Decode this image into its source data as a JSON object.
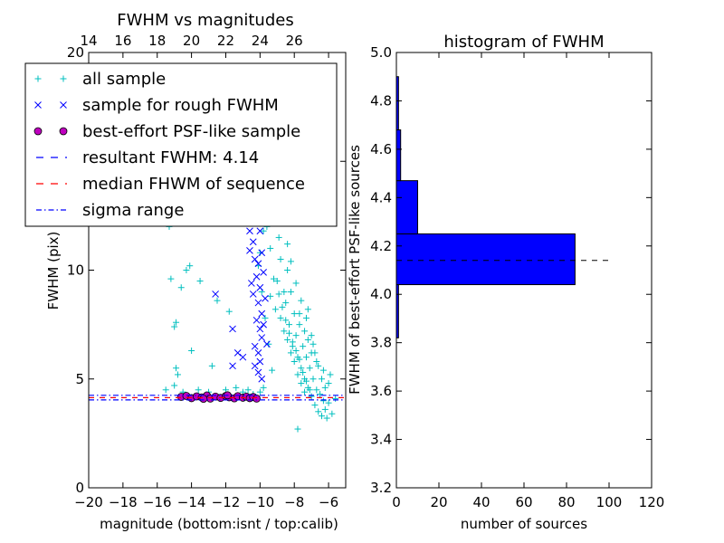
{
  "chart_data": [
    {
      "type": "scatter",
      "title": "FWHM vs magnitudes",
      "xlabel": "magnitude (bottom:isnt / top:calib)",
      "ylabel": "FWHM (pix)",
      "xlim": [
        -20,
        -5
      ],
      "ylim": [
        0,
        20
      ],
      "x_ticks": [
        -20,
        -18,
        -16,
        -14,
        -12,
        -10,
        -8,
        -6
      ],
      "x_tick_labels": [
        "−20",
        "−18",
        "−16",
        "−14",
        "−12",
        "−10",
        "−8",
        "−6"
      ],
      "y_ticks": [
        0,
        5,
        10,
        15,
        20
      ],
      "y_tick_labels": [
        "0",
        "5",
        "10",
        "15",
        "20"
      ],
      "top_axis": {
        "ticks": [
          14,
          16,
          18,
          20,
          22,
          24,
          26
        ],
        "labels": [
          "14",
          "16",
          "18",
          "20",
          "22",
          "24",
          "26"
        ],
        "offset": 34
      },
      "legend": {
        "position": "top-left",
        "entries": [
          {
            "label": "all sample",
            "marker": "plus",
            "color": "#00bfbf"
          },
          {
            "label": "sample for rough FWHM",
            "marker": "x",
            "color": "#0000ff"
          },
          {
            "label": "best-effort PSF-like sample",
            "marker": "circle",
            "color": "#bf00bf"
          },
          {
            "label": "resultant FWHM: 4.14",
            "marker": "dashed",
            "color": "#0000ff"
          },
          {
            "label": "median FHWM of sequence",
            "marker": "dashed",
            "color": "#ff0000"
          },
          {
            "label": "sigma range",
            "marker": "dashdot",
            "color": "#0000ff"
          }
        ]
      },
      "series": [
        {
          "name": "all sample",
          "marker": "plus",
          "color": "#00bfbf",
          "points": [
            [
              -15.3,
              12.0
            ],
            [
              -15.2,
              9.6
            ],
            [
              -15.0,
              7.4
            ],
            [
              -14.9,
              7.6
            ],
            [
              -14.6,
              9.2
            ],
            [
              -14.3,
              10.0
            ],
            [
              -14.1,
              10.2
            ],
            [
              -14.9,
              5.5
            ],
            [
              -14.8,
              5.2
            ],
            [
              -14.0,
              6.3
            ],
            [
              -15.0,
              4.7
            ],
            [
              -13.5,
              9.5
            ],
            [
              -12.5,
              8.6
            ],
            [
              -12.8,
              5.6
            ],
            [
              -11.8,
              8.1
            ],
            [
              -11.3,
              15.9
            ],
            [
              -10.8,
              15.0
            ],
            [
              -10.6,
              13.8
            ],
            [
              -10.2,
              14.5
            ],
            [
              -10.0,
              10.8
            ],
            [
              -9.7,
              13.5
            ],
            [
              -9.6,
              12.0
            ],
            [
              -9.4,
              11.0
            ],
            [
              -9.3,
              14.0
            ],
            [
              -9.1,
              12.5
            ],
            [
              -9.0,
              9.5
            ],
            [
              -8.9,
              11.5
            ],
            [
              -8.8,
              10.5
            ],
            [
              -8.7,
              13.0
            ],
            [
              -8.6,
              9.0
            ],
            [
              -8.5,
              8.5
            ],
            [
              -8.4,
              10.0
            ],
            [
              -8.3,
              7.5
            ],
            [
              -8.2,
              9.0
            ],
            [
              -8.1,
              6.5
            ],
            [
              -8.0,
              8.0
            ],
            [
              -7.9,
              7.0
            ],
            [
              -7.8,
              6.0
            ],
            [
              -7.7,
              7.5
            ],
            [
              -7.6,
              5.5
            ],
            [
              -7.5,
              6.5
            ],
            [
              -7.4,
              5.0
            ],
            [
              -7.3,
              6.0
            ],
            [
              -7.2,
              4.6
            ],
            [
              -7.1,
              5.5
            ],
            [
              -7.0,
              4.2
            ],
            [
              -6.9,
              5.0
            ],
            [
              -6.8,
              3.8
            ],
            [
              -6.7,
              4.5
            ],
            [
              -6.6,
              3.5
            ],
            [
              -6.5,
              4.3
            ],
            [
              -6.4,
              3.3
            ],
            [
              -6.3,
              4.0
            ],
            [
              -6.2,
              3.6
            ],
            [
              -6.1,
              3.2
            ],
            [
              -6.0,
              3.9
            ],
            [
              -5.8,
              3.4
            ],
            [
              -5.6,
              4.1
            ],
            [
              -7.8,
              2.7
            ],
            [
              -9.1,
              8.2
            ],
            [
              -8.8,
              7.8
            ],
            [
              -8.6,
              7.2
            ],
            [
              -8.4,
              6.8
            ],
            [
              -8.2,
              6.2
            ],
            [
              -8.0,
              5.8
            ],
            [
              -7.8,
              5.2
            ],
            [
              -7.6,
              4.8
            ],
            [
              -7.4,
              4.4
            ],
            [
              -9.4,
              8.8
            ],
            [
              -9.2,
              9.6
            ],
            [
              -8.9,
              8.9
            ],
            [
              -8.7,
              8.3
            ],
            [
              -8.5,
              7.7
            ],
            [
              -8.3,
              7.1
            ],
            [
              -8.1,
              6.7
            ],
            [
              -7.9,
              6.3
            ],
            [
              -7.7,
              5.9
            ],
            [
              -7.5,
              5.3
            ],
            [
              -7.3,
              4.9
            ],
            [
              -7.1,
              4.5
            ],
            [
              -9.8,
              11.8
            ],
            [
              -9.5,
              12.8
            ],
            [
              -9.2,
              13.6
            ],
            [
              -8.9,
              14.8
            ],
            [
              -8.6,
              12.2
            ],
            [
              -8.4,
              11.2
            ],
            [
              -8.2,
              10.4
            ],
            [
              -7.9,
              9.4
            ],
            [
              -7.6,
              8.6
            ],
            [
              -7.3,
              7.8
            ],
            [
              -7.0,
              7.0
            ],
            [
              -6.8,
              6.2
            ],
            [
              -6.6,
              5.6
            ],
            [
              -6.4,
              5.0
            ],
            [
              -6.2,
              4.6
            ],
            [
              -7.6,
              19.2
            ],
            [
              -8.6,
              16.5
            ],
            [
              -9.0,
              16.0
            ],
            [
              -7.2,
              8.2
            ],
            [
              -6.9,
              6.6
            ],
            [
              -10.3,
              12.6
            ],
            [
              -10.1,
              10.2
            ],
            [
              -9.9,
              9.0
            ],
            [
              -9.7,
              7.8
            ],
            [
              -9.5,
              6.6
            ],
            [
              -9.3,
              5.4
            ],
            [
              -9.8,
              4.6
            ],
            [
              -10.0,
              4.4
            ],
            [
              -10.4,
              4.3
            ],
            [
              -10.7,
              4.5
            ],
            [
              -11.0,
              4.4
            ],
            [
              -11.4,
              4.6
            ],
            [
              -12.0,
              4.5
            ],
            [
              -13.0,
              4.4
            ],
            [
              -13.6,
              4.5
            ],
            [
              -14.5,
              4.4
            ],
            [
              -15.5,
              4.5
            ],
            [
              -6.0,
              4.8
            ],
            [
              -5.9,
              5.2
            ],
            [
              -6.3,
              5.4
            ],
            [
              -6.7,
              5.8
            ],
            [
              -7.0,
              6.2
            ],
            [
              -7.2,
              6.8
            ],
            [
              -7.4,
              7.2
            ],
            [
              -7.7,
              8.0
            ]
          ]
        },
        {
          "name": "sample for rough FWHM",
          "marker": "x",
          "color": "#0000ff",
          "points": [
            [
              -11.3,
              13.3
            ],
            [
              -10.7,
              13.0
            ],
            [
              -10.5,
              12.6
            ],
            [
              -10.6,
              11.8
            ],
            [
              -10.4,
              11.3
            ],
            [
              -10.6,
              10.9
            ],
            [
              -10.3,
              10.5
            ],
            [
              -10.1,
              10.3
            ],
            [
              -10.2,
              9.7
            ],
            [
              -10.0,
              9.2
            ],
            [
              -10.4,
              8.9
            ],
            [
              -10.1,
              8.5
            ],
            [
              -9.9,
              8.0
            ],
            [
              -10.2,
              7.7
            ],
            [
              -10.0,
              7.3
            ],
            [
              -9.9,
              6.9
            ],
            [
              -10.3,
              6.5
            ],
            [
              -10.1,
              6.2
            ],
            [
              -10.0,
              5.8
            ],
            [
              -10.3,
              5.6
            ],
            [
              -10.1,
              5.3
            ],
            [
              -9.9,
              5.0
            ],
            [
              -11.6,
              7.3
            ],
            [
              -11.3,
              6.2
            ],
            [
              -11.0,
              6.0
            ],
            [
              -11.6,
              5.6
            ],
            [
              -12.6,
              8.9
            ],
            [
              -9.8,
              9.9
            ],
            [
              -9.7,
              8.7
            ],
            [
              -9.8,
              7.5
            ],
            [
              -9.6,
              6.6
            ],
            [
              -10.0,
              11.8
            ],
            [
              -10.2,
              12.3
            ],
            [
              -10.5,
              9.4
            ],
            [
              -9.9,
              10.8
            ]
          ]
        },
        {
          "name": "best-effort PSF-like sample",
          "marker": "circle",
          "color": "#bf00bf",
          "points": [
            [
              -14.6,
              4.18
            ],
            [
              -14.3,
              4.22
            ],
            [
              -14.0,
              4.12
            ],
            [
              -13.7,
              4.2
            ],
            [
              -13.4,
              4.15
            ],
            [
              -13.1,
              4.24
            ],
            [
              -12.9,
              4.1
            ],
            [
              -12.6,
              4.19
            ],
            [
              -12.3,
              4.13
            ],
            [
              -12.0,
              4.22
            ],
            [
              -11.8,
              4.16
            ],
            [
              -11.5,
              4.11
            ],
            [
              -11.3,
              4.21
            ],
            [
              -11.0,
              4.14
            ],
            [
              -10.8,
              4.19
            ],
            [
              -10.6,
              4.12
            ],
            [
              -10.4,
              4.17
            ],
            [
              -10.2,
              4.1
            ],
            [
              -13.3,
              4.09
            ],
            [
              -11.9,
              4.25
            ]
          ]
        }
      ],
      "lines": [
        {
          "name": "resultant FWHM: 4.14",
          "y": 4.14,
          "style": "dashed",
          "color": "#0000ff"
        },
        {
          "name": "median FHWM of sequence",
          "y": 4.14,
          "style": "dashed",
          "color": "#ff0000"
        },
        {
          "name": "sigma range",
          "y": 4.04,
          "style": "dashdot",
          "color": "#0000ff"
        },
        {
          "name": "sigma range",
          "y": 4.25,
          "style": "dashdot",
          "color": "#0000ff"
        }
      ]
    },
    {
      "type": "bar",
      "orientation": "horizontal",
      "title": "histogram of FWHM",
      "xlabel": "number of sources",
      "ylabel": "FWHM of best-effort PSF-like sources",
      "xlim": [
        0,
        120
      ],
      "ylim": [
        3.2,
        5.0
      ],
      "x_ticks": [
        0,
        20,
        40,
        60,
        80,
        100,
        120
      ],
      "x_tick_labels": [
        "0",
        "20",
        "40",
        "60",
        "80",
        "100",
        "120"
      ],
      "y_ticks": [
        3.2,
        3.4,
        3.6,
        3.8,
        4.0,
        4.2,
        4.4,
        4.6,
        4.8,
        5.0
      ],
      "y_tick_labels": [
        "3.2",
        "3.4",
        "3.6",
        "3.8",
        "4.0",
        "4.2",
        "4.4",
        "4.6",
        "4.8",
        "5.0"
      ],
      "color": "#0000ff",
      "bins": [
        {
          "from": 3.82,
          "to": 4.04,
          "count": 1
        },
        {
          "from": 4.04,
          "to": 4.25,
          "count": 84
        },
        {
          "from": 4.25,
          "to": 4.47,
          "count": 10
        },
        {
          "from": 4.47,
          "to": 4.68,
          "count": 2
        },
        {
          "from": 4.68,
          "to": 4.9,
          "count": 1
        }
      ],
      "reference_line": {
        "y": 4.14,
        "x_range": [
          0,
          102
        ],
        "style": "dashed",
        "color": "#000000"
      }
    }
  ]
}
